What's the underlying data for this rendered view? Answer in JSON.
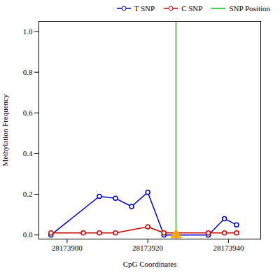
{
  "chart_data": {
    "type": "line",
    "xlabel": "CpG Coordinates",
    "ylabel": "Methylation Frequency",
    "xlim": [
      28173893,
      28173948
    ],
    "ylim": [
      -0.02,
      1.05
    ],
    "xticks": [
      28173900,
      28173920,
      28173940
    ],
    "yticks": [
      {
        "value": 0.0,
        "label": "0.0"
      },
      0.2,
      0.4,
      0.6,
      0.8,
      {
        "value": 1.0,
        "label": "1.0"
      }
    ],
    "grid": false,
    "legend": "upper right",
    "series": [
      {
        "name": "T SNP",
        "type": "line",
        "marker": "circle",
        "color": "#0000cc",
        "x": [
          28173896,
          28173908,
          28173912,
          28173916,
          28173920,
          28173924,
          28173935,
          28173939,
          28173942
        ],
        "values": [
          0.0,
          0.19,
          0.18,
          0.14,
          0.21,
          0.0,
          0.0,
          0.08,
          0.05
        ]
      },
      {
        "name": "C SNP",
        "type": "line",
        "marker": "circle",
        "color": "#cc0000",
        "x": [
          28173896,
          28173904,
          28173908,
          28173912,
          28173920,
          28173924,
          28173935,
          28173939,
          28173942
        ],
        "values": [
          0.01,
          0.01,
          0.01,
          0.01,
          0.04,
          0.01,
          0.01,
          0.01,
          0.01
        ]
      },
      {
        "name": "SNP Position",
        "type": "vline",
        "color": "#00cc00",
        "x": [
          28173927
        ]
      },
      {
        "type": "scatter",
        "marker": "triangle",
        "color": "#FFA500",
        "x": [
          28173927
        ],
        "values": [
          0.0
        ]
      }
    ]
  }
}
